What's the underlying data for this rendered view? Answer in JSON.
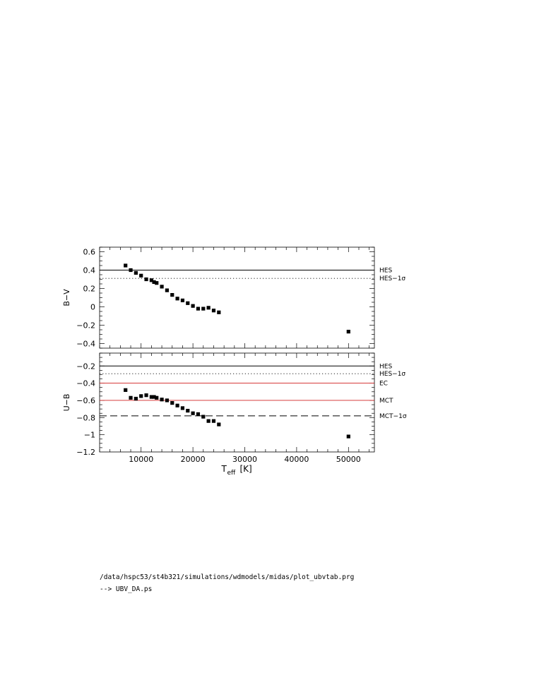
{
  "chart_data": [
    {
      "type": "scatter",
      "panel": "top",
      "ylabel": "B−V",
      "ylim": [
        -0.45,
        0.65
      ],
      "xlim": [
        2000,
        55000
      ],
      "yticks": [
        0.6,
        0.4,
        0.2,
        0,
        -0.2,
        -0.4
      ],
      "yticklabels": [
        "0.6",
        "0.4",
        "0.2",
        "0",
        "−0.2",
        "−0.4"
      ],
      "series": [
        {
          "marker": "square",
          "color": "#000000",
          "x": [
            7000,
            8000,
            9000,
            10000,
            11000,
            12000,
            12500,
            13000,
            14000,
            15000,
            16000,
            17000,
            18000,
            19000,
            20000,
            21000,
            22000,
            23000,
            24000,
            25000,
            50000
          ],
          "y": [
            0.45,
            0.4,
            0.37,
            0.34,
            0.3,
            0.29,
            0.27,
            0.26,
            0.22,
            0.18,
            0.13,
            0.09,
            0.07,
            0.04,
            0.01,
            -0.02,
            -0.02,
            -0.01,
            -0.04,
            -0.06,
            -0.27
          ]
        }
      ],
      "reference_lines": [
        {
          "y": 0.4,
          "label": "HES",
          "style": "solid",
          "color": "#000000"
        },
        {
          "y": 0.31,
          "label": "HES−1σ",
          "style": "dotted",
          "color": "#000000"
        }
      ]
    },
    {
      "type": "scatter",
      "panel": "bottom",
      "ylabel": "U−B",
      "xlabel": "T_eff [K]",
      "xlabel_main": "T",
      "xlabel_sub": "eff",
      "xlabel_unit": "[K]",
      "ylim": [
        -1.2,
        -0.05
      ],
      "xlim": [
        2000,
        55000
      ],
      "yticks": [
        -0.2,
        -0.4,
        -0.6,
        -0.8,
        -1,
        -1.2
      ],
      "yticklabels": [
        "−0.2",
        "−0.4",
        "−0.6",
        "−0.8",
        "−1",
        "−1.2"
      ],
      "xticks": [
        10000,
        20000,
        30000,
        40000,
        50000
      ],
      "xticklabels": [
        "10000",
        "20000",
        "30000",
        "40000",
        "50000"
      ],
      "series": [
        {
          "marker": "square",
          "color": "#000000",
          "x": [
            7000,
            8000,
            9000,
            10000,
            11000,
            12000,
            12500,
            13000,
            14000,
            15000,
            16000,
            17000,
            18000,
            19000,
            20000,
            21000,
            22000,
            23000,
            24000,
            25000,
            50000
          ],
          "y": [
            -0.48,
            -0.57,
            -0.58,
            -0.55,
            -0.54,
            -0.56,
            -0.56,
            -0.57,
            -0.59,
            -0.6,
            -0.63,
            -0.66,
            -0.69,
            -0.72,
            -0.75,
            -0.76,
            -0.79,
            -0.84,
            -0.84,
            -0.88,
            -1.02
          ]
        }
      ],
      "reference_lines": [
        {
          "y": -0.2,
          "label": "HES",
          "style": "solid",
          "color": "#000000"
        },
        {
          "y": -0.29,
          "label": "HES−1σ",
          "style": "dotted",
          "color": "#000000"
        },
        {
          "y": -0.4,
          "label": "EC",
          "style": "solid",
          "color": "#d02020"
        },
        {
          "y": -0.6,
          "label": "MCT",
          "style": "solid",
          "color": "#d02020"
        },
        {
          "y": -0.78,
          "label": "MCT−1σ",
          "style": "dashed",
          "color": "#000000"
        }
      ]
    }
  ],
  "captions": {
    "path": "/data/hspc53/st4b321/simulations/wdmodels/midas/plot_ubvtab.prg",
    "output": "--> UBV_DA.ps"
  }
}
